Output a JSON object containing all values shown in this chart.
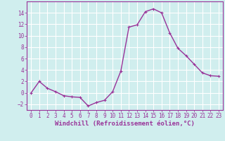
{
  "x": [
    0,
    1,
    2,
    3,
    4,
    5,
    6,
    7,
    8,
    9,
    10,
    11,
    12,
    13,
    14,
    15,
    16,
    17,
    18,
    19,
    20,
    21,
    22,
    23
  ],
  "y": [
    0,
    2,
    0.8,
    0.2,
    -0.5,
    -0.7,
    -0.8,
    -2.3,
    -1.7,
    -1.3,
    0.2,
    3.8,
    11.5,
    11.9,
    14.2,
    14.7,
    14.0,
    10.5,
    7.8,
    6.5,
    5.0,
    3.5,
    3.0,
    2.9
  ],
  "line_color": "#993399",
  "marker": "+",
  "marker_size": 3,
  "linewidth": 1.0,
  "bg_color": "#d0eeee",
  "grid_color": "#ffffff",
  "xlabel": "Windchill (Refroidissement éolien,°C)",
  "ylim": [
    -3,
    16
  ],
  "xlim": [
    -0.5,
    23.5
  ],
  "yticks": [
    -2,
    0,
    2,
    4,
    6,
    8,
    10,
    12,
    14
  ],
  "xticks": [
    0,
    1,
    2,
    3,
    4,
    5,
    6,
    7,
    8,
    9,
    10,
    11,
    12,
    13,
    14,
    15,
    16,
    17,
    18,
    19,
    20,
    21,
    22,
    23
  ],
  "tick_color": "#993399",
  "tick_labelsize": 5.5,
  "xlabel_fontsize": 6.5,
  "xlabel_color": "#993399",
  "spine_color": "#993399"
}
